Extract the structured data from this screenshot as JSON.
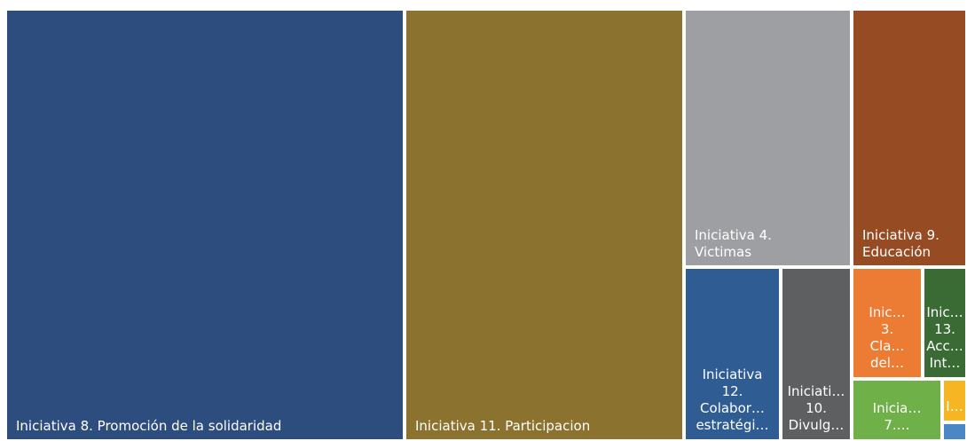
{
  "chart_data": {
    "type": "treemap",
    "items": [
      {
        "name": "Iniciativa 8. Promoción de la solidaridad",
        "label": "Iniciativa 8. Promoción de la solidaridad",
        "value": 2243,
        "color": "#2e4d7f"
      },
      {
        "name": "Iniciativa 11. Participacion",
        "label": "Iniciativa 11. Participacion",
        "value": 1547,
        "color": "#8c722f"
      },
      {
        "name": "Iniciativa 4. Victimas",
        "label": "Iniciativa 4.\nVictimas",
        "value": 467,
        "color": "#9d9fa2"
      },
      {
        "name": "Iniciativa 9. Educación",
        "label": "Iniciativa 9.\nEducación",
        "value": 380,
        "color": "#974b23"
      },
      {
        "name": "Iniciativa 12. Colabor… estratégi…",
        "label": "Iniciativa\n12.\nColabor…\nestratégi…",
        "value": 153,
        "color": "#2f5d93"
      },
      {
        "name": "Iniciati… 10. Divulg…",
        "label": "Iniciati…\n10.\nDivulg…",
        "value": 128,
        "color": "#5e5f61"
      },
      {
        "name": "Inic… 3. Cla… del…",
        "label": "Inic…\n3.\nCla…\ndel…",
        "value": 51,
        "color": "#ec7b34"
      },
      {
        "name": "Inic… 13. Acc… Int…",
        "label": "Inic…\n13.\nAcc…\nInt…",
        "value": 45,
        "color": "#3b6b35"
      },
      {
        "name": "Inicia… 7.…",
        "label": "Inicia…\n7.…",
        "value": 29,
        "color": "#6fb049"
      },
      {
        "name": "I…",
        "label": "I…",
        "value": 9,
        "color": "#f6b623"
      },
      {
        "name": "",
        "label": "",
        "value": 4,
        "color": "#4b86c5"
      }
    ]
  }
}
